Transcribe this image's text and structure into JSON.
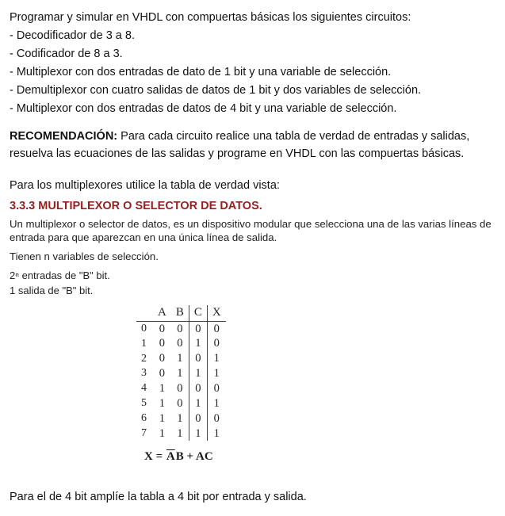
{
  "intro": {
    "lead": "Programar y simular en VHDL con compuertas básicas los siguientes circuitos:",
    "items": [
      "- Decodificador de 3 a 8.",
      "- Codificador de 8 a 3.",
      "- Multiplexor con dos entradas de dato de 1 bit y una variable de selección.",
      "- Demultiplexor con cuatro salidas de datos de 1 bit y dos variables de selección.",
      "- Multiplexor con dos entradas de datos de 4 bit y una variable de selección."
    ]
  },
  "recommendation": {
    "label": "RECOMENDACIÓN:",
    "text": "Para cada circuito realice una tabla de verdad de entradas y salidas, resuelva las ecuaciones de las salidas y programe en VHDL con las compuertas básicas."
  },
  "multiplexor_note": "Para los multiplexores utilice la tabla de verdad vista:",
  "section": {
    "title": "3.3.3  MULTIPLEXOR O SELECTOR DE DATOS.",
    "p1": "Un multiplexor o selector de datos, es un dispositivo modular que selecciona una de las varias líneas de entrada para que aparezcan en una única línea de salida.",
    "p2": "Tienen n variables de selección.",
    "sub": [
      "2ⁿ entradas de \"B\" bit.",
      "1 salida de \"B\" bit."
    ]
  },
  "truth_table": {
    "headers": [
      "A",
      "B",
      "C",
      "X"
    ],
    "rows": [
      [
        "0",
        "0",
        "0",
        "0",
        "0"
      ],
      [
        "1",
        "0",
        "0",
        "1",
        "0"
      ],
      [
        "2",
        "0",
        "1",
        "0",
        "1"
      ],
      [
        "3",
        "0",
        "1",
        "1",
        "1"
      ],
      [
        "4",
        "1",
        "0",
        "0",
        "0"
      ],
      [
        "5",
        "1",
        "0",
        "1",
        "1"
      ],
      [
        "6",
        "1",
        "1",
        "0",
        "0"
      ],
      [
        "7",
        "1",
        "1",
        "1",
        "1"
      ]
    ]
  },
  "equation": {
    "lhs": "X = ",
    "term1_bar": "A",
    "term1_tail": "B",
    "plus": " + ",
    "term2": "AC"
  },
  "bottom_note": "Para el de 4 bit amplíe la tabla a 4 bit por entrada y salida.",
  "colors": {
    "title_red": "#992020",
    "text": "#111111",
    "table_border": "#444444",
    "background": "#ffffff"
  }
}
